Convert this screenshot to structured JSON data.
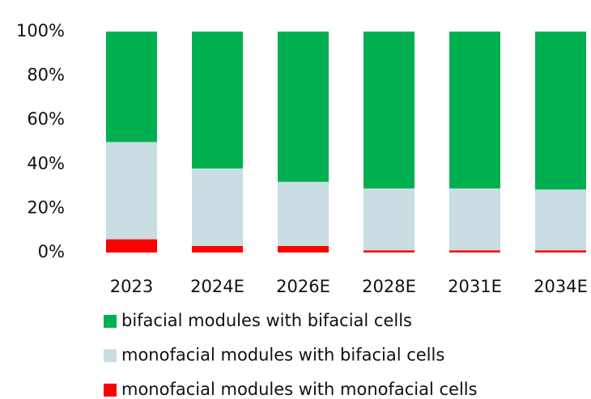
{
  "chart_data": {
    "type": "stacked_bar",
    "categories": [
      "2023",
      "2024E",
      "2026E",
      "2028E",
      "2031E",
      "2034E"
    ],
    "series": [
      {
        "name": "bifacial modules with bifacial cells",
        "color": "#00b050",
        "values": [
          50,
          62,
          68,
          71,
          71,
          71.5
        ]
      },
      {
        "name": "monofacial modules with bifacial cells",
        "color": "#c9dde3",
        "values": [
          44,
          35,
          29,
          28,
          28,
          27.5
        ]
      },
      {
        "name": "monofacial modules with monofacial cells",
        "color": "#ff0000",
        "values": [
          6,
          3,
          3,
          1,
          1,
          1
        ]
      }
    ],
    "ylim": [
      0,
      100
    ],
    "yticks": [
      {
        "value": 0,
        "label": "0%"
      },
      {
        "value": 20,
        "label": "20%"
      },
      {
        "value": 40,
        "label": "40%"
      },
      {
        "value": 60,
        "label": "60%"
      },
      {
        "value": 80,
        "label": "80%"
      },
      {
        "value": 100,
        "label": "100%"
      }
    ],
    "grid": false
  }
}
